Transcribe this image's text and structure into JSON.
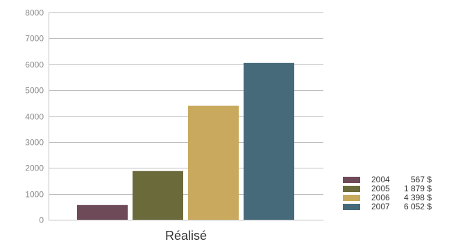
{
  "chart_data": {
    "type": "bar",
    "category": "Réalisé",
    "ylim": [
      0,
      8000
    ],
    "yticks": [
      0,
      1000,
      2000,
      3000,
      4000,
      5000,
      6000,
      7000,
      8000
    ],
    "grid": true,
    "legend_position": "bottom-right",
    "series": [
      {
        "name": "2004",
        "value": 567,
        "label": "567 $",
        "color": "#6e4a59"
      },
      {
        "name": "2005",
        "value": 1879,
        "label": "1 879 $",
        "color": "#6b6a3b"
      },
      {
        "name": "2006",
        "value": 4398,
        "label": "4 398 $",
        "color": "#c8a95e"
      },
      {
        "name": "2007",
        "value": 6052,
        "label": "6 052 $",
        "color": "#466a7a"
      }
    ]
  }
}
